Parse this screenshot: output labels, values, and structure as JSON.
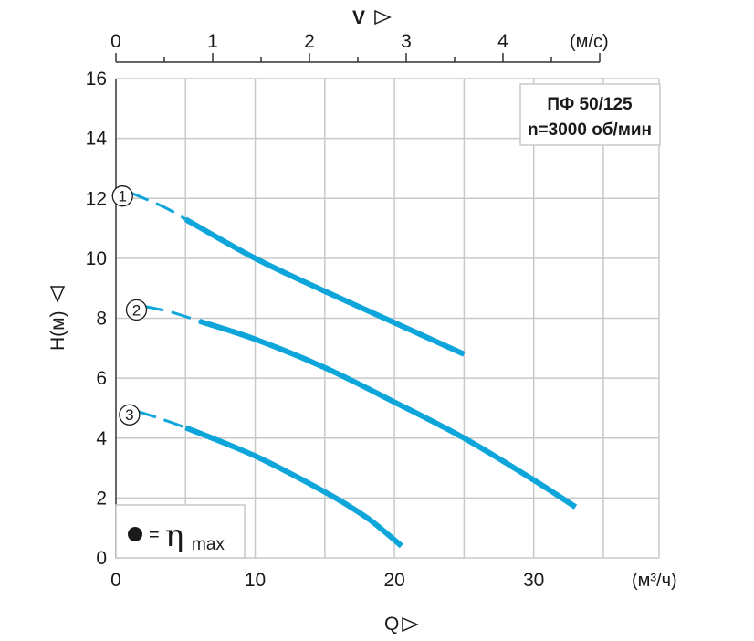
{
  "chart_data": {
    "type": "line",
    "title_lines": [
      "ПФ 50/125",
      "n=3000 об/мин"
    ],
    "x": {
      "label": "Q",
      "unit": "(м³/ч)",
      "ticks": [
        0,
        10,
        20,
        30
      ],
      "range": [
        0,
        39
      ]
    },
    "y": {
      "label": "H(м)",
      "ticks": [
        0,
        2,
        4,
        6,
        8,
        10,
        12,
        14,
        16
      ],
      "range": [
        0,
        16
      ]
    },
    "x_top": {
      "label": "V",
      "unit": "(м/с)",
      "ticks": [
        0,
        1,
        2,
        3,
        4
      ],
      "range": [
        0,
        5.0
      ]
    },
    "grid": true,
    "colors": {
      "curve": "#0ea6da",
      "grid": "#c9c9c9",
      "axis": "#333333"
    },
    "series": [
      {
        "name": "1",
        "points": [
          [
            1,
            12.2
          ],
          [
            3.5,
            11.7
          ],
          [
            5,
            11.3
          ],
          [
            10,
            10.0
          ],
          [
            15,
            8.9
          ],
          [
            20,
            7.85
          ],
          [
            25,
            6.8
          ]
        ],
        "dashed_until": 5
      },
      {
        "name": "2",
        "points": [
          [
            2,
            8.4
          ],
          [
            4,
            8.2
          ],
          [
            6,
            7.9
          ],
          [
            10,
            7.3
          ],
          [
            15,
            6.35
          ],
          [
            20,
            5.2
          ],
          [
            25,
            4.0
          ],
          [
            30,
            2.6
          ],
          [
            33,
            1.7
          ]
        ],
        "dashed_until": 6
      },
      {
        "name": "3",
        "points": [
          [
            1.5,
            4.9
          ],
          [
            3.5,
            4.6
          ],
          [
            5,
            4.35
          ],
          [
            10,
            3.4
          ],
          [
            15,
            2.2
          ],
          [
            18,
            1.35
          ],
          [
            20.5,
            0.4
          ]
        ],
        "dashed_until": 5
      }
    ],
    "legend": {
      "symbol": "●",
      "equals": "=",
      "eta": "η",
      "sub": "max",
      "position": "bottom-left"
    }
  }
}
